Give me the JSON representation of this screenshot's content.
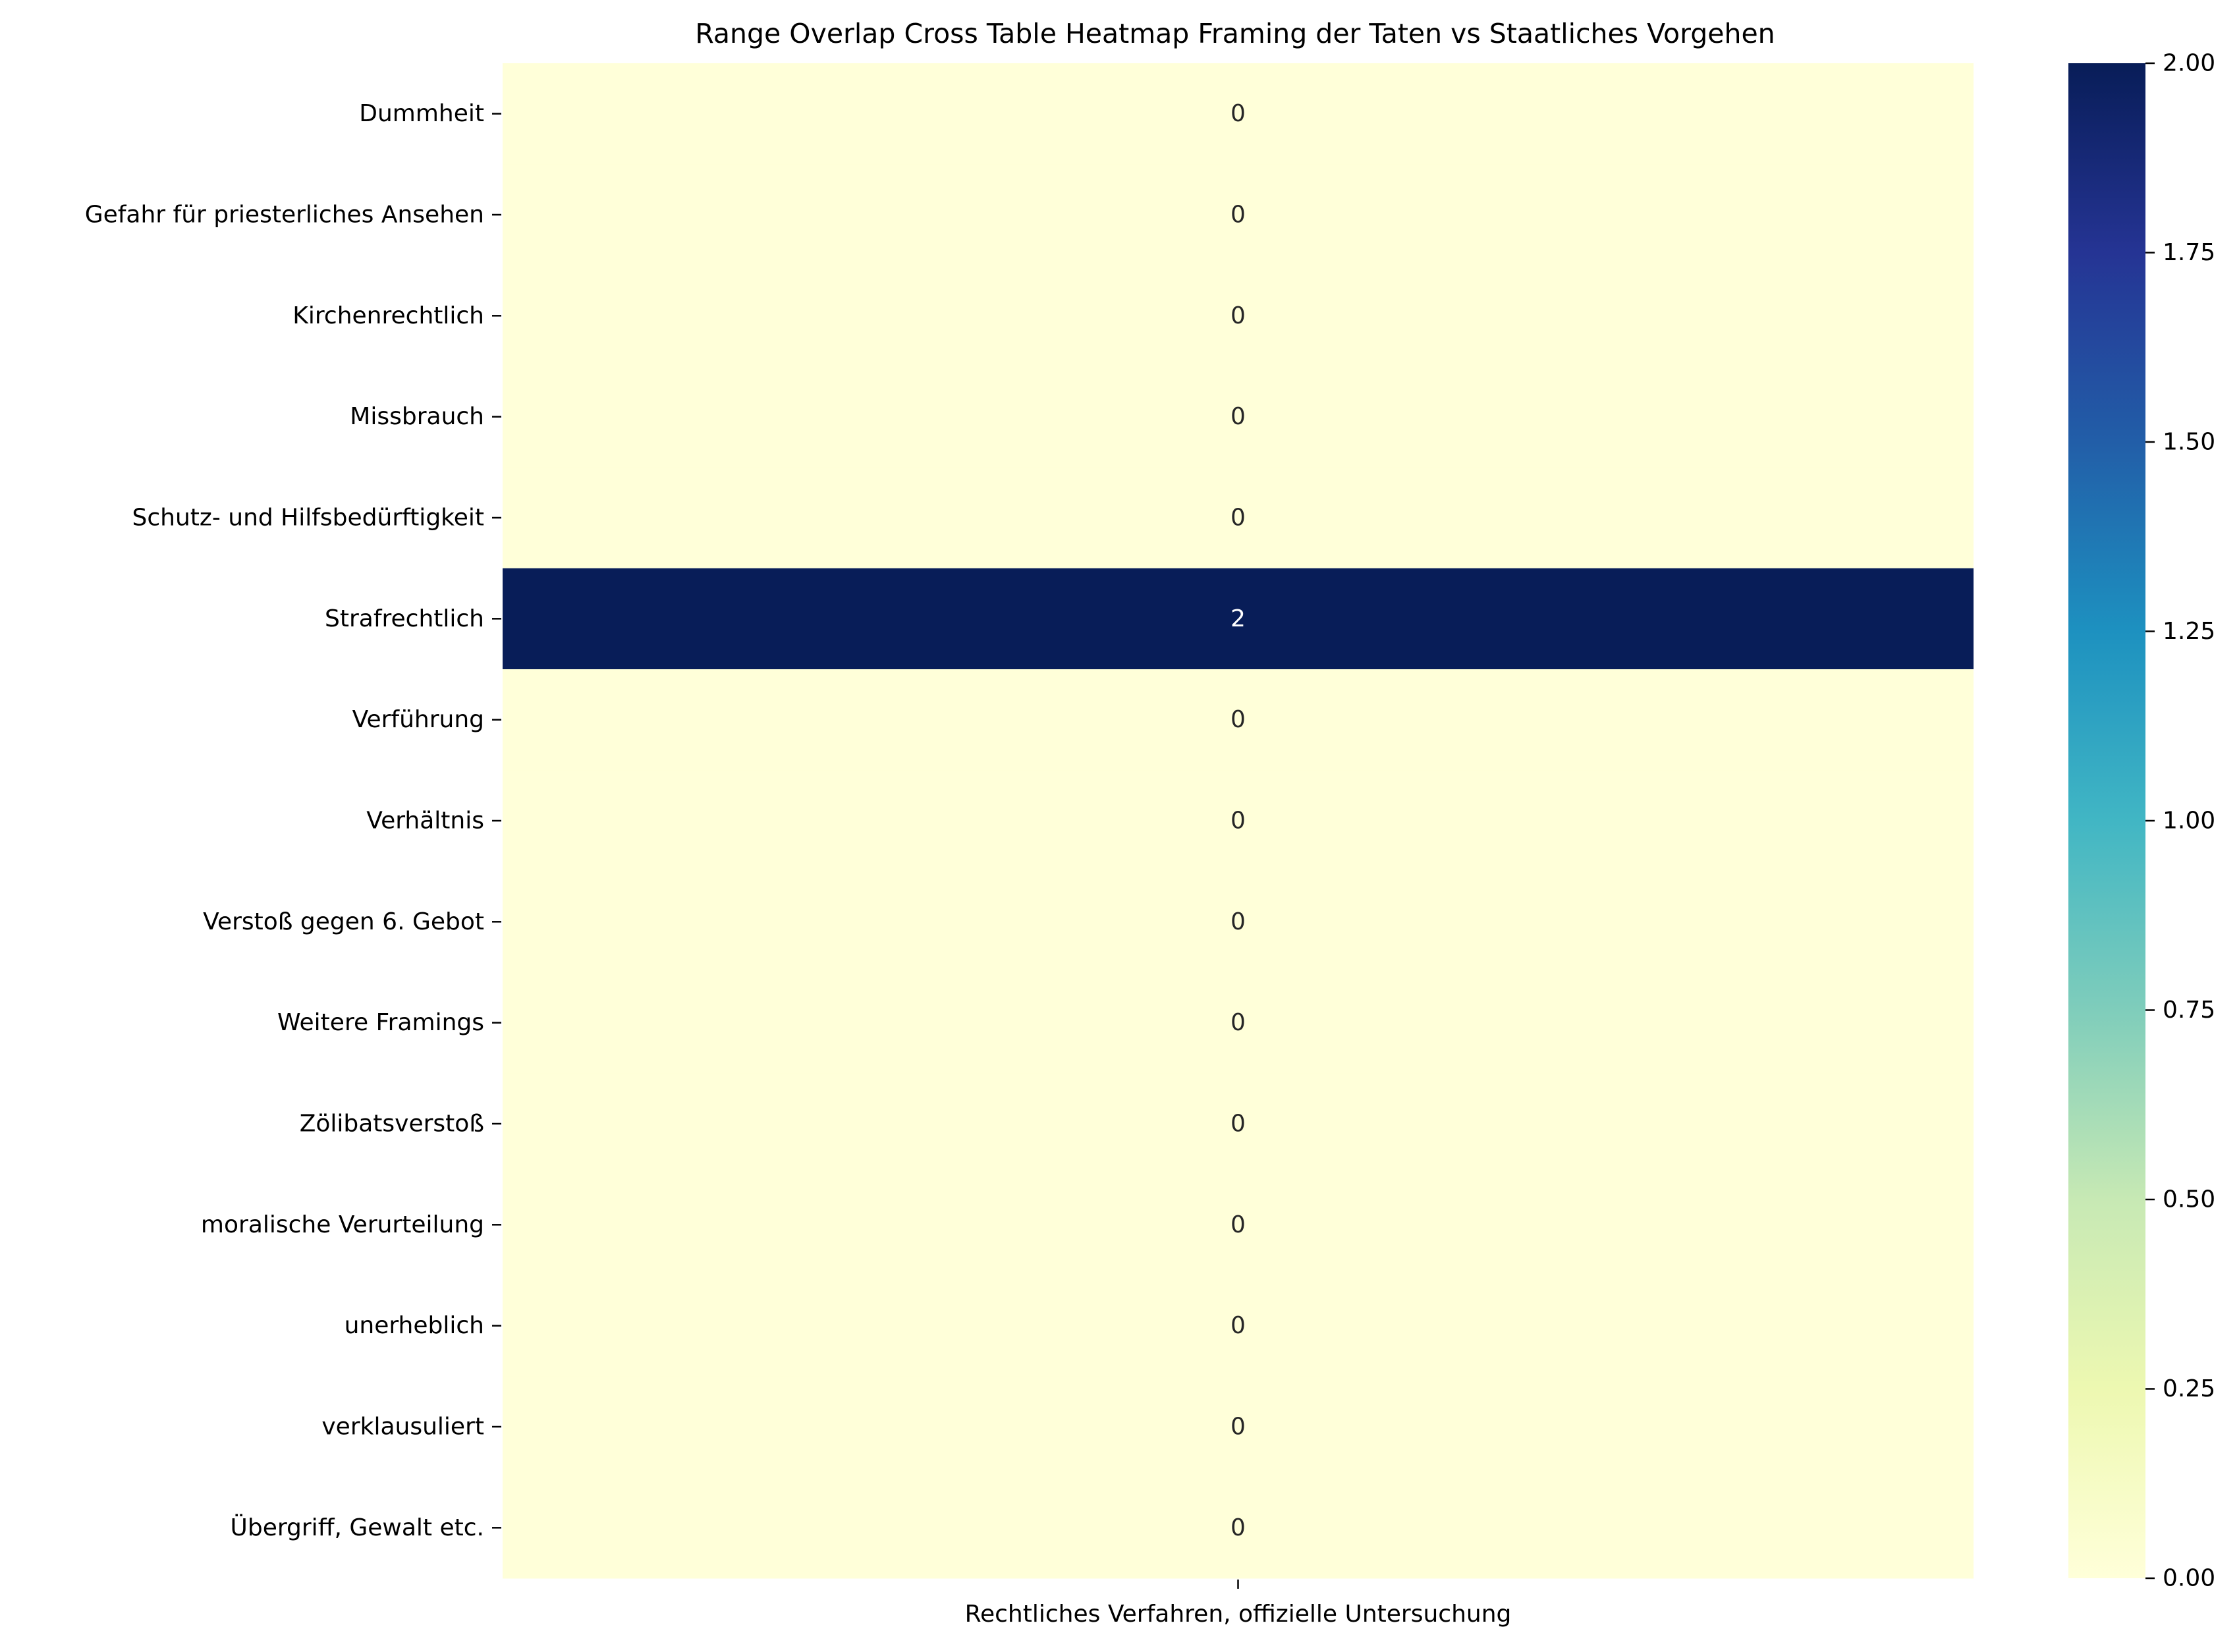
{
  "chart_data": {
    "type": "heatmap",
    "title": "Range Overlap Cross Table Heatmap Framing der Taten vs Staatliches Vorgehen",
    "xlabel": "",
    "ylabel": "",
    "columns": [
      "Rechtliches Verfahren, offizielle Untersuchung"
    ],
    "rows": [
      "Dummheit",
      "Gefahr für priesterliches Ansehen",
      "Kirchenrechtlich",
      "Missbrauch",
      "Schutz- und Hilfsbedürftigkeit",
      "Strafrechtlich",
      "Verführung",
      "Verhältnis",
      "Verstoß gegen 6. Gebot",
      "Weitere Framings",
      "Zölibatsverstoß",
      "moralische Verurteilung",
      "unerheblich",
      "verklausuliert",
      "Übergriff, Gewalt etc."
    ],
    "values": [
      [
        0
      ],
      [
        0
      ],
      [
        0
      ],
      [
        0
      ],
      [
        0
      ],
      [
        2
      ],
      [
        0
      ],
      [
        0
      ],
      [
        0
      ],
      [
        0
      ],
      [
        0
      ],
      [
        0
      ],
      [
        0
      ],
      [
        0
      ],
      [
        0
      ]
    ],
    "colormap": "YlGnBu",
    "colorbar": {
      "range": [
        0,
        2
      ],
      "ticks": [
        "0.00",
        "0.25",
        "0.50",
        "0.75",
        "1.00",
        "1.25",
        "1.50",
        "1.75",
        "2.00"
      ]
    },
    "annotations": true,
    "grid": false
  }
}
